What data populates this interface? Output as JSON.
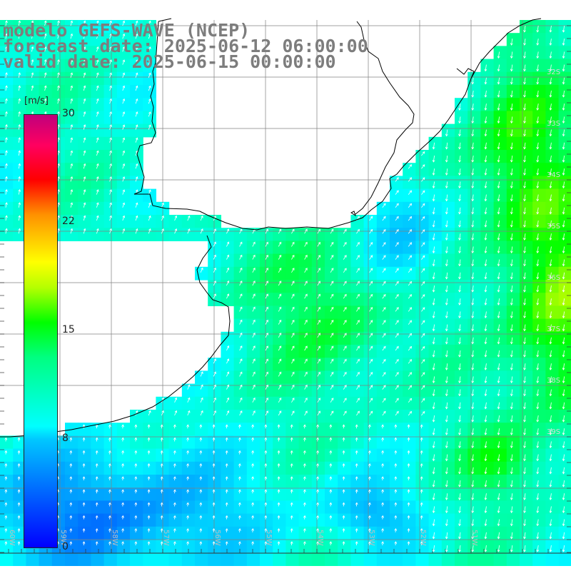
{
  "title": {
    "model": "modelo GEFS-WAVE (NCEP)",
    "forecast": "forecast date: 2025-06-12 06:00:00",
    "valid": "valid date: 2025-06-15 00:00:00"
  },
  "colorbar": {
    "unit": "[m/s]",
    "ticks": [
      "30",
      "22",
      "15",
      "8",
      "0"
    ],
    "tick_values": [
      30,
      22,
      15,
      8,
      0
    ],
    "colors": [
      "#0000ff",
      "#00ffff",
      "#00ff00",
      "#ffff00",
      "#ff0000",
      "#c0007c"
    ]
  },
  "lat_labels": [
    "32S",
    "33S",
    "34S",
    "35S",
    "36S",
    "37S",
    "38S",
    "39S"
  ],
  "lon_labels": [
    "60W",
    "59W",
    "58W",
    "57W",
    "56W",
    "55W",
    "54W",
    "53W",
    "52W",
    "51W"
  ],
  "colors": {
    "land": "#ffffff",
    "coast": "#000000",
    "grid": "#808080",
    "arrow": "#ffffff",
    "title": "#7d7d7d"
  }
}
